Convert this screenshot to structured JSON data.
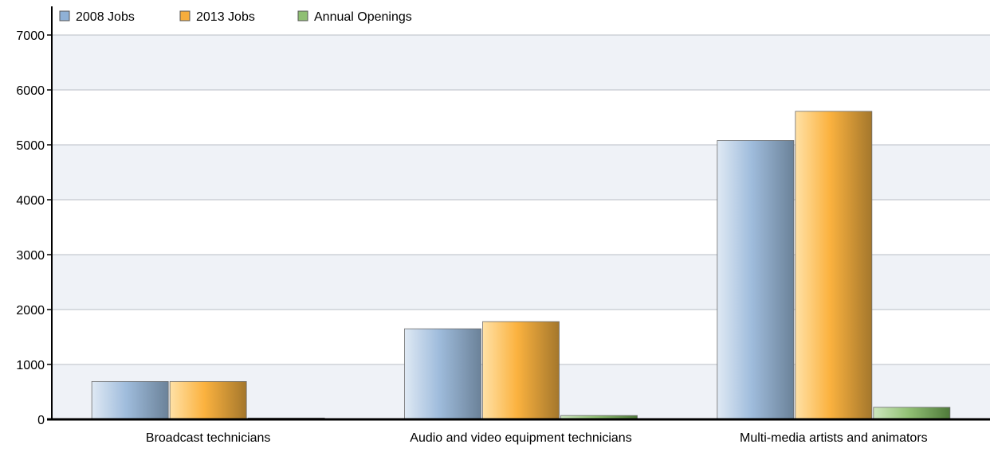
{
  "chart_data": {
    "type": "bar",
    "title": "",
    "xlabel": "",
    "ylabel": "",
    "categories": [
      "Broadcast technicians",
      "Audio and video equipment technicians",
      "Multi-media artists and animators"
    ],
    "series": [
      {
        "name": "2008 Jobs",
        "values": [
          690,
          1650,
          5080
        ],
        "color": "#8fb1d6"
      },
      {
        "name": "2013 Jobs",
        "values": [
          690,
          1780,
          5610
        ],
        "color": "#f6ad3c"
      },
      {
        "name": "Annual Openings",
        "values": [
          25,
          70,
          220
        ],
        "color": "#8fbf73"
      }
    ],
    "ylim": [
      0,
      7000
    ],
    "yticks": [
      0,
      1000,
      2000,
      3000,
      4000,
      5000,
      6000,
      7000
    ],
    "grid": true,
    "legend_position": "top-left"
  }
}
